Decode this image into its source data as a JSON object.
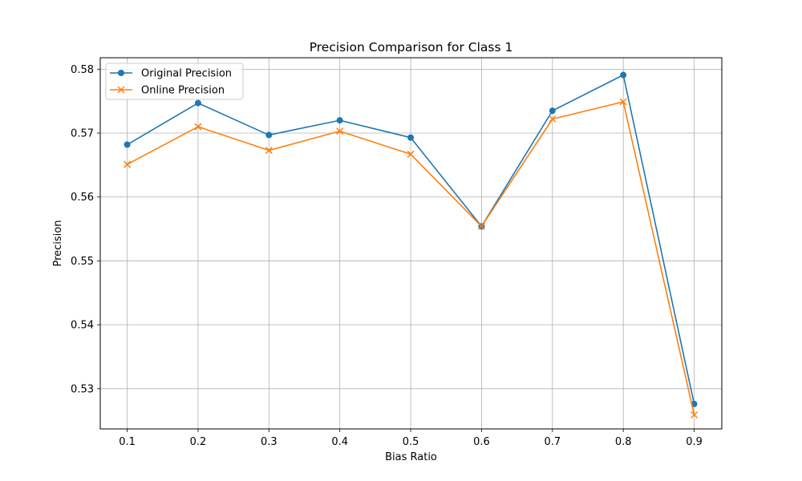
{
  "chart_data": {
    "type": "line",
    "title": "Precision Comparison for Class 1",
    "xlabel": "Bias Ratio",
    "ylabel": "Precision",
    "x": [
      0.1,
      0.2,
      0.3,
      0.4,
      0.5,
      0.6,
      0.7,
      0.8,
      0.9
    ],
    "x_tick_labels": [
      "0.1",
      "0.2",
      "0.3",
      "0.4",
      "0.5",
      "0.6",
      "0.7",
      "0.8",
      "0.9"
    ],
    "y_ticks": [
      0.53,
      0.54,
      0.55,
      0.56,
      0.57,
      0.58
    ],
    "y_tick_labels": [
      "0.53",
      "0.54",
      "0.55",
      "0.56",
      "0.57",
      "0.58"
    ],
    "xlim": [
      0.062,
      0.939
    ],
    "ylim": [
      0.5237,
      0.5818
    ],
    "grid": true,
    "legend_position": "top-left",
    "series": [
      {
        "name": "Original Precision",
        "marker": "circle",
        "color": "#1f77b4",
        "values": [
          0.5682,
          0.5747,
          0.5697,
          0.572,
          0.5693,
          0.5554,
          0.5735,
          0.5791,
          0.5276
        ]
      },
      {
        "name": "Online Precision",
        "marker": "x",
        "color": "#ff7f0e",
        "values": [
          0.5651,
          0.571,
          0.5673,
          0.5703,
          0.5667,
          0.5554,
          0.5722,
          0.5749,
          0.5259
        ]
      }
    ]
  }
}
